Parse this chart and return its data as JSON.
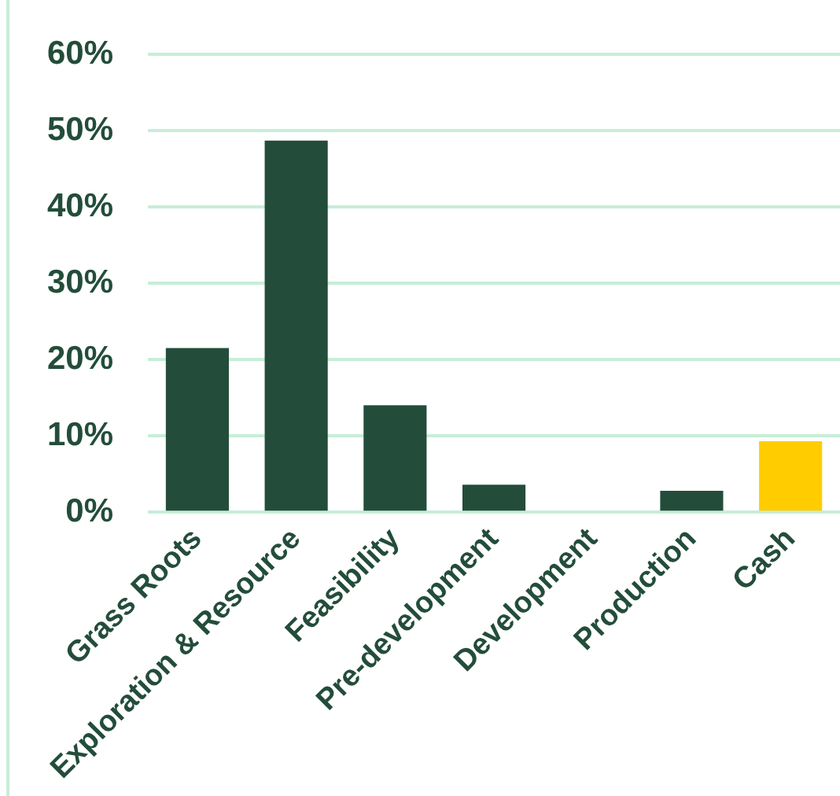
{
  "chart_data": {
    "type": "bar",
    "categories": [
      "Grass Roots",
      "Exploration & Resource",
      "Feasibility",
      "Pre-development",
      "Development",
      "Production",
      "Cash"
    ],
    "values": [
      21.5,
      48.7,
      14.0,
      3.6,
      0,
      2.8,
      9.3
    ],
    "colors": [
      "#234d3a",
      "#234d3a",
      "#234d3a",
      "#234d3a",
      "#234d3a",
      "#234d3a",
      "#ffcc00"
    ],
    "ylim": [
      0,
      60
    ],
    "yticks": [
      {
        "value": 0,
        "label": "0%"
      },
      {
        "value": 10,
        "label": "10%"
      },
      {
        "value": 20,
        "label": "20%"
      },
      {
        "value": 30,
        "label": "30%"
      },
      {
        "value": 40,
        "label": "40%"
      },
      {
        "value": 50,
        "label": "50%"
      },
      {
        "value": 60,
        "label": "60%"
      }
    ],
    "grid": "y",
    "legend": false
  }
}
